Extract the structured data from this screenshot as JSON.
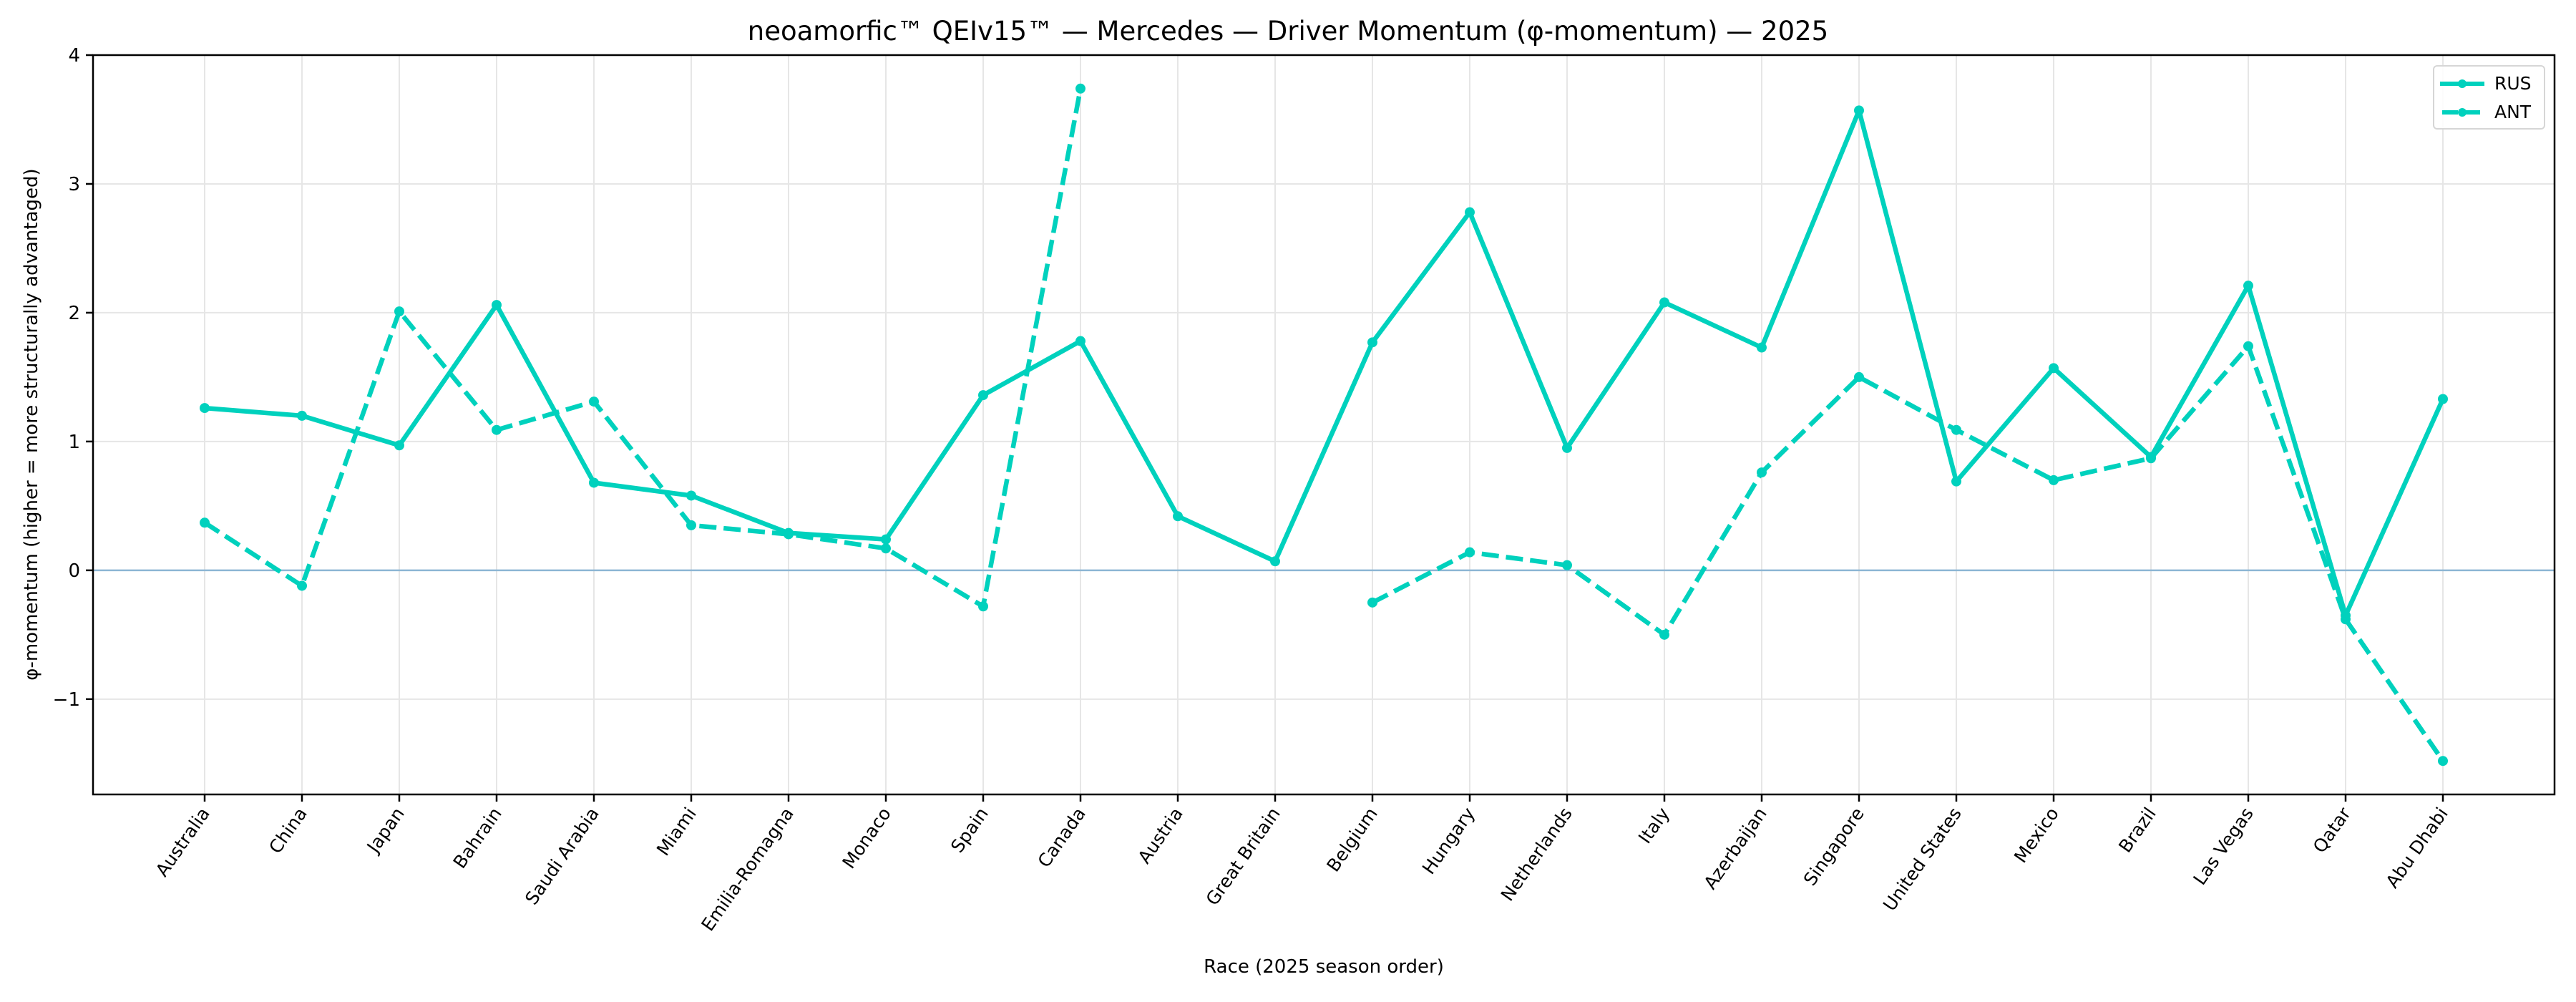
{
  "chart_data": {
    "type": "line",
    "title": "neoamorfic™  QEIv15™ — Mercedes — Driver Momentum (φ-momentum) — 2025",
    "xlabel": "Race (2025 season order)",
    "ylabel": "φ-momentum (higher = more structurally advantaged)",
    "ylim": [
      -1.74,
      4
    ],
    "yticks": [
      -1,
      0,
      1,
      2,
      3,
      4
    ],
    "ytick_labels": [
      "−1",
      "0",
      "1",
      "2",
      "3",
      "4"
    ],
    "grid": true,
    "reference_line": {
      "y": 0,
      "color": "#8db6d4"
    },
    "legend_position": "upper right",
    "categories": [
      "Australia",
      "China",
      "Japan",
      "Bahrain",
      "Saudi Arabia",
      "Miami",
      "Emilia-Romagna",
      "Monaco",
      "Spain",
      "Canada",
      "Austria",
      "Great Britain",
      "Belgium",
      "Hungary",
      "Netherlands",
      "Italy",
      "Azerbaijan",
      "Singapore",
      "United States",
      "Mexico",
      "Brazil",
      "Las Vegas",
      "Qatar",
      "Abu Dhabi"
    ],
    "series": [
      {
        "name": "RUS",
        "style": "solid",
        "color": "#00d1bd",
        "values": [
          1.26,
          1.2,
          0.97,
          2.06,
          0.68,
          0.58,
          0.29,
          0.24,
          1.36,
          1.78,
          0.42,
          0.07,
          1.77,
          2.78,
          0.95,
          2.08,
          1.73,
          3.57,
          0.69,
          1.57,
          0.88,
          2.21,
          -0.35,
          1.33
        ]
      },
      {
        "name": "ANT",
        "style": "dashed",
        "color": "#00d1bd",
        "values": [
          0.37,
          -0.12,
          2.01,
          1.09,
          1.31,
          0.35,
          0.28,
          0.17,
          -0.28,
          3.74,
          null,
          null,
          -0.25,
          0.14,
          0.04,
          -0.5,
          0.76,
          1.5,
          1.09,
          0.7,
          0.87,
          1.74,
          -0.38,
          -1.48
        ]
      }
    ]
  },
  "legend": {
    "items": [
      {
        "label": "RUS",
        "style": "solid"
      },
      {
        "label": "ANT",
        "style": "dashed"
      }
    ]
  },
  "colors": {
    "line": "#00d1bd",
    "zero_line": "#8db6d4",
    "grid": "#e6e6e6",
    "axis": "#000000"
  }
}
